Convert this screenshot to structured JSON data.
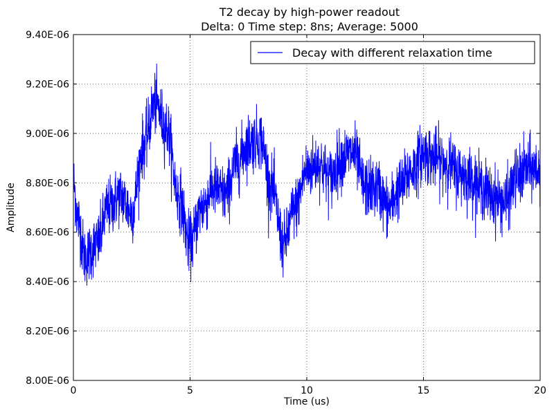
{
  "chart_data": {
    "type": "line",
    "title": "T2 decay by high-power readout",
    "subtitle": "Delta: 0 Time step: 8ns; Average: 5000",
    "xlabel": "Time (us)",
    "ylabel": "Amplitude",
    "xlim": [
      0,
      20
    ],
    "ylim": [
      8e-06,
      9.4e-06
    ],
    "x_ticks": [
      0,
      5,
      10,
      15,
      20
    ],
    "x_tick_labels": [
      "0",
      "5",
      "10",
      "15",
      "20"
    ],
    "y_ticks": [
      8e-06,
      8.2e-06,
      8.4e-06,
      8.6e-06,
      8.8e-06,
      9e-06,
      9.2e-06,
      9.4e-06
    ],
    "y_tick_labels": [
      "8.00E-06",
      "8.20E-06",
      "8.40E-06",
      "8.60E-06",
      "8.80E-06",
      "9.00E-06",
      "9.20E-06",
      "9.40E-06"
    ],
    "grid": true,
    "legend_position": "top-right",
    "line_color": "#0000ff",
    "series": [
      {
        "name": "Decay with different relaxation time",
        "x_step": 0.008,
        "envelope_x": [
          0,
          0.2,
          0.5,
          1.0,
          1.5,
          2.0,
          2.5,
          3.0,
          3.5,
          4.0,
          4.5,
          5.0,
          5.5,
          6.0,
          6.5,
          7.0,
          7.5,
          8.0,
          8.5,
          9.0,
          9.5,
          10.0,
          10.5,
          11.0,
          11.5,
          12.0,
          12.5,
          13.0,
          13.5,
          14.0,
          14.5,
          15.0,
          15.5,
          16.0,
          16.5,
          17.0,
          17.5,
          18.0,
          18.5,
          19.0,
          19.5,
          20.0
        ],
        "envelope_y": [
          8.8e-06,
          8.65e-06,
          8.5e-06,
          8.55e-06,
          8.7e-06,
          8.75e-06,
          8.68e-06,
          8.95e-06,
          9.12e-06,
          9.02e-06,
          8.75e-06,
          8.55e-06,
          8.7e-06,
          8.78e-06,
          8.75e-06,
          8.88e-06,
          8.96e-06,
          8.98e-06,
          8.78e-06,
          8.55e-06,
          8.7e-06,
          8.85e-06,
          8.88e-06,
          8.82e-06,
          8.9e-06,
          8.92e-06,
          8.78e-06,
          8.78e-06,
          8.7e-06,
          8.78e-06,
          8.85e-06,
          8.92e-06,
          8.9e-06,
          8.88e-06,
          8.84e-06,
          8.82e-06,
          8.78e-06,
          8.74e-06,
          8.72e-06,
          8.82e-06,
          8.86e-06,
          8.85e-06
        ],
        "noise_amplitude": 8e-08,
        "min_value": 8.26e-06,
        "max_value": 9.34e-06
      }
    ]
  }
}
